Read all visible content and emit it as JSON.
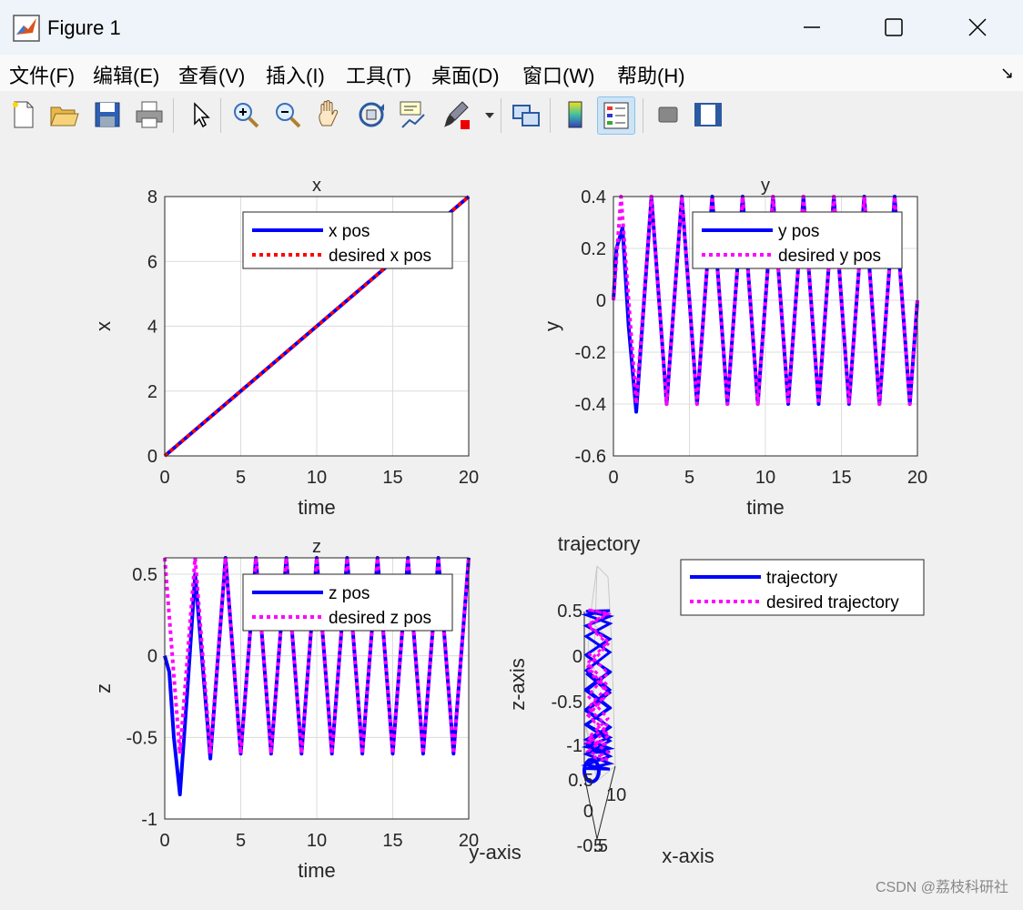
{
  "window": {
    "title": "Figure 1"
  },
  "menu": [
    "文件(F)",
    "编辑(E)",
    "查看(V)",
    "插入(I)",
    "工具(T)",
    "桌面(D)",
    "窗口(W)",
    "帮助(H)"
  ],
  "toolbar": {
    "icons": [
      "new-figure-icon",
      "open-file-icon",
      "save-icon",
      "print-icon",
      "select-arrow-icon",
      "zoom-in-icon",
      "zoom-out-icon",
      "pan-hand-icon",
      "rotate-3d-icon",
      "data-cursor-icon",
      "brush-icon",
      "link-plot-icon",
      "colorbar-icon",
      "legend-icon",
      "hide-plot-tools-icon",
      "show-plot-tools-icon"
    ],
    "active": "legend-icon"
  },
  "colors": {
    "blue": "#0000ff",
    "red": "#ff0000",
    "magenta": "#ff00ff"
  },
  "chart_data": [
    {
      "type": "line",
      "title": "x",
      "xlabel": "time",
      "ylabel": "x",
      "xlim": [
        0,
        20
      ],
      "ylim": [
        0,
        8
      ],
      "xticks": [
        "0",
        "5",
        "10",
        "15",
        "20"
      ],
      "yticks": [
        "0",
        "2",
        "4",
        "6",
        "8"
      ],
      "grid": true,
      "legend_position": "top-right",
      "series": [
        {
          "name": "x pos",
          "style": "solid",
          "color": "#0000ff",
          "x": [
            0,
            20
          ],
          "y": [
            0,
            8
          ]
        },
        {
          "name": "desired x pos",
          "style": "dotted",
          "color": "#ff0000",
          "x": [
            0,
            20
          ],
          "y": [
            0,
            8
          ]
        }
      ]
    },
    {
      "type": "line",
      "title": "y",
      "xlabel": "time",
      "ylabel": "y",
      "xlim": [
        0,
        20
      ],
      "ylim": [
        -0.6,
        0.4
      ],
      "xticks": [
        "0",
        "5",
        "10",
        "15",
        "20"
      ],
      "yticks": [
        "-0.6",
        "-0.4",
        "-0.2",
        "0",
        "0.2",
        "0.4"
      ],
      "grid": true,
      "legend_position": "top-right",
      "series": [
        {
          "name": "y pos",
          "style": "solid",
          "color": "#0000ff",
          "x": [
            0,
            0.2,
            0.6,
            1.0,
            1.5,
            2.5,
            3.5,
            4.5,
            5.5,
            6.5,
            7.5,
            8.5,
            9.5,
            10.5,
            11.5,
            12.5,
            13.5,
            14.5,
            15.5,
            16.5,
            17.5,
            18.5,
            19.5,
            20
          ],
          "y": [
            0,
            0.2,
            0.28,
            -0.1,
            -0.43,
            0.4,
            -0.4,
            0.4,
            -0.4,
            0.4,
            -0.4,
            0.4,
            -0.4,
            0.4,
            -0.4,
            0.4,
            -0.4,
            0.4,
            -0.4,
            0.4,
            -0.4,
            0.4,
            -0.4,
            0
          ]
        },
        {
          "name": "desired y pos",
          "style": "dotted",
          "color": "#ff00ff",
          "x": [
            0,
            0.5,
            1.5,
            2.5,
            3.5,
            4.5,
            5.5,
            6.5,
            7.5,
            8.5,
            9.5,
            10.5,
            11.5,
            12.5,
            13.5,
            14.5,
            15.5,
            16.5,
            17.5,
            18.5,
            19.5,
            20
          ],
          "y": [
            0,
            0.4,
            -0.4,
            0.4,
            -0.4,
            0.4,
            -0.4,
            0.4,
            -0.4,
            0.4,
            -0.4,
            0.4,
            -0.4,
            0.4,
            -0.4,
            0.4,
            -0.4,
            0.4,
            -0.4,
            0.4,
            -0.4,
            0
          ]
        }
      ]
    },
    {
      "type": "line",
      "title": "z",
      "xlabel": "time",
      "ylabel": "z",
      "xlim": [
        0,
        20
      ],
      "ylim": [
        -1,
        0.6
      ],
      "xticks": [
        "0",
        "5",
        "10",
        "15",
        "20"
      ],
      "yticks": [
        "-1",
        "-0.5",
        "0",
        "0.5"
      ],
      "grid": true,
      "legend_position": "top-right",
      "series": [
        {
          "name": "z pos",
          "style": "solid",
          "color": "#0000ff",
          "x": [
            0,
            0.3,
            0.6,
            1.0,
            1.5,
            2.0,
            3.0,
            4.0,
            5.0,
            6.0,
            7.0,
            8.0,
            9.0,
            10.0,
            11.0,
            12.0,
            13.0,
            14.0,
            15.0,
            16.0,
            17.0,
            18.0,
            19.0,
            20.0
          ],
          "y": [
            0,
            -0.1,
            -0.5,
            -0.85,
            -0.2,
            0.5,
            -0.63,
            0.6,
            -0.6,
            0.6,
            -0.6,
            0.6,
            -0.6,
            0.6,
            -0.6,
            0.6,
            -0.6,
            0.6,
            -0.6,
            0.6,
            -0.6,
            0.6,
            -0.6,
            0.6
          ]
        },
        {
          "name": "desired z pos",
          "style": "dotted",
          "color": "#ff00ff",
          "x": [
            0,
            1.0,
            2.0,
            3.0,
            4.0,
            5.0,
            6.0,
            7.0,
            8.0,
            9.0,
            10.0,
            11.0,
            12.0,
            13.0,
            14.0,
            15.0,
            16.0,
            17.0,
            18.0,
            19.0,
            20.0
          ],
          "y": [
            0.6,
            -0.6,
            0.6,
            -0.6,
            0.6,
            -0.6,
            0.6,
            -0.6,
            0.6,
            -0.6,
            0.6,
            -0.6,
            0.6,
            -0.6,
            0.6,
            -0.6,
            0.6,
            -0.6,
            0.6,
            -0.6,
            0.6
          ]
        }
      ]
    },
    {
      "type": "line",
      "title": "trajectory",
      "xlabel": "x-axis",
      "ylabel": "y-axis",
      "zlabel": "z-axis",
      "zticks": [
        "0.5",
        "0",
        "-0.5",
        "-1"
      ],
      "yticks": [
        "0.5",
        "0",
        "-0.5"
      ],
      "xticks": [
        "5",
        "10"
      ],
      "legend_position": "top-right",
      "series": [
        {
          "name": "trajectory",
          "style": "solid",
          "color": "#0000ff"
        },
        {
          "name": "desired trajectory",
          "style": "dotted",
          "color": "#ff00ff"
        }
      ]
    }
  ],
  "watermark": "CSDN @荔枝科研社"
}
